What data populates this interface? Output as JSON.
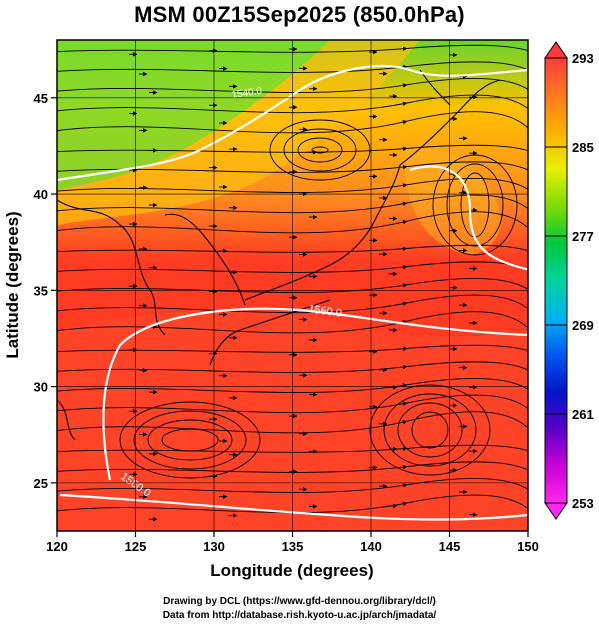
{
  "title": "MSM 00Z15Sep2025 (850.0hPa)",
  "map": {
    "xlabel": "Longitude (degrees)",
    "ylabel": "Latitude  (degrees)",
    "x_range": [
      120,
      150
    ],
    "y_range": [
      22.5,
      48
    ],
    "x_ticks": [
      "120",
      "125",
      "130",
      "135",
      "140",
      "145",
      "150"
    ],
    "y_ticks": [
      "25",
      "30",
      "35",
      "40",
      "45"
    ],
    "contour_labels": [
      "1560.0",
      "1560.0",
      "1540.0"
    ],
    "colorbar": {
      "min": 253,
      "max": 293,
      "labels": [
        "293",
        "285",
        "277",
        "269",
        "261",
        "253"
      ],
      "colors": [
        "#ff3b3b",
        "#ff7a1f",
        "#ffb000",
        "#e8f000",
        "#7ddc00",
        "#00c83c",
        "#00d2a0",
        "#00b4f0",
        "#0058f0",
        "#0016c8",
        "#5a00c8",
        "#c800d8",
        "#ff28f0"
      ]
    },
    "field_colors": {
      "warm": "#ff3b22",
      "mid": "#ff8a1f",
      "cool": "#ffc000",
      "cold": "#6ad52c"
    }
  },
  "footer": {
    "line1": "Drawing by DCL (https://www.gfd-dennou.org/library/dcl/)",
    "line2": "Data from http://database.rish.kyoto-u.ac.jp/arch/jmadata/"
  }
}
